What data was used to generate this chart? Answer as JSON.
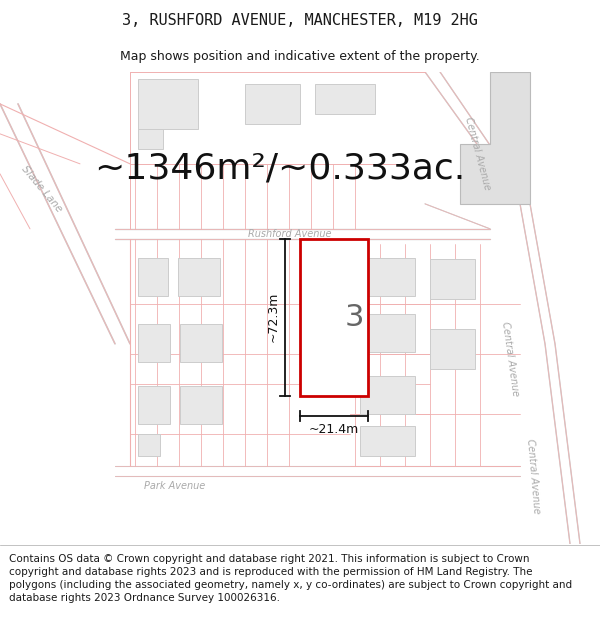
{
  "title": "3, RUSHFORD AVENUE, MANCHESTER, M19 2HG",
  "subtitle": "Map shows position and indicative extent of the property.",
  "area_text": "~1346m²/~0.333ac.",
  "width_label": "~21.4m",
  "height_label": "~72.3m",
  "property_number": "3",
  "footer_text": "Contains OS data © Crown copyright and database right 2021. This information is subject to Crown copyright and database rights 2023 and is reproduced with the permission of HM Land Registry. The polygons (including the associated geometry, namely x, y co-ordinates) are subject to Crown copyright and database rights 2023 Ordnance Survey 100026316.",
  "bg_color": "#ffffff",
  "map_bg": "#ffffff",
  "road_stroke": "#e8b8b8",
  "building_fill": "#e8e8e8",
  "building_edge": "#cccccc",
  "highlight_color": "#cc0000",
  "text_color": "#1a1a1a",
  "road_label_color": "#aaaaaa",
  "dim_color": "#111111",
  "title_fontsize": 11,
  "subtitle_fontsize": 9,
  "area_fontsize": 26,
  "footer_fontsize": 7.5
}
